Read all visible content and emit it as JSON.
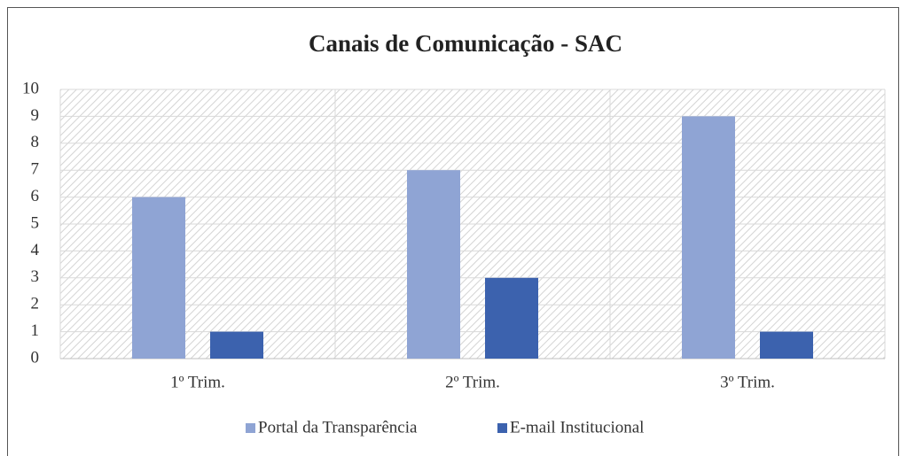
{
  "chart_data": {
    "type": "bar",
    "title": "Canais de Comunicação - SAC",
    "categories": [
      "1º Trim.",
      "2º Trim.",
      "3º Trim."
    ],
    "series": [
      {
        "name": "Portal da Transparência",
        "color": "#8fa4d4",
        "values": [
          6,
          7,
          9
        ]
      },
      {
        "name": "E-mail Institucional",
        "color": "#3c62ae",
        "values": [
          1,
          3,
          1
        ]
      }
    ],
    "ylim": [
      0,
      10
    ],
    "yticks": [
      0,
      1,
      2,
      3,
      4,
      5,
      6,
      7,
      8,
      9,
      10
    ],
    "grid": true,
    "legend": "bottom"
  }
}
